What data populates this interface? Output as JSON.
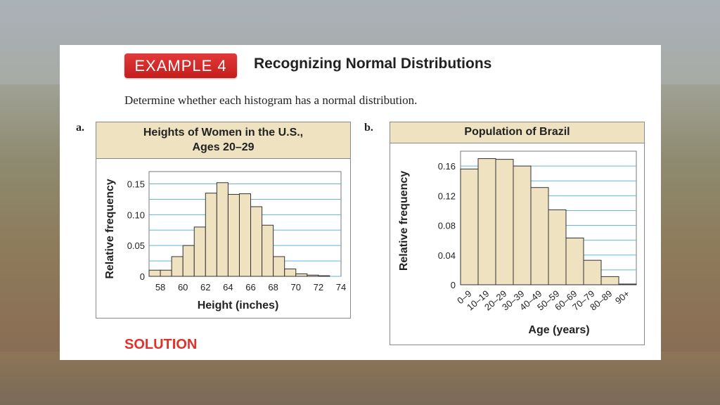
{
  "example": {
    "badge": "EXAMPLE 4",
    "title": "Recognizing Normal Distributions",
    "instruction": "Determine whether each histogram has a normal distribution.",
    "solution_label": "SOLUTION"
  },
  "colors": {
    "bar_fill": "#efe2c0",
    "grid": "#5fb7e0",
    "accent_red": "#e0322c",
    "panel_header": "#efe2c0"
  },
  "chart_data": [
    {
      "part_label": "a.",
      "type": "bar",
      "title_line1": "Heights of Women in the U.S.,",
      "title_line2": "Ages 20–29",
      "xlabel": "Height (inches)",
      "ylabel": "Relative frequency",
      "x_ticks": [
        "58",
        "60",
        "62",
        "64",
        "66",
        "68",
        "70",
        "72",
        "74"
      ],
      "y_ticks": [
        "0",
        "0.05",
        "0.10",
        "0.15"
      ],
      "bin_edges": [
        57,
        58,
        59,
        60,
        61,
        62,
        63,
        64,
        65,
        66,
        67,
        68,
        69,
        70,
        71,
        72,
        73,
        74
      ],
      "values": [
        0.01,
        0.01,
        0.032,
        0.05,
        0.08,
        0.135,
        0.152,
        0.133,
        0.134,
        0.113,
        0.083,
        0.032,
        0.012,
        0.004,
        0.002,
        0.001,
        0.0
      ],
      "ylim": [
        0,
        0.17
      ],
      "grid": true
    },
    {
      "part_label": "b.",
      "type": "bar",
      "title": "Population of Brazil",
      "xlabel": "Age (years)",
      "ylabel": "Relative frequency",
      "categories": [
        "0–9",
        "10–19",
        "20–29",
        "30–39",
        "40–49",
        "50–59",
        "60–69",
        "70–79",
        "80–89",
        "90+"
      ],
      "values": [
        0.156,
        0.17,
        0.169,
        0.16,
        0.131,
        0.101,
        0.063,
        0.033,
        0.011,
        0.001
      ],
      "y_ticks": [
        "0",
        "0.04",
        "0.08",
        "0.12",
        "0.16"
      ],
      "ylim": [
        0,
        0.18
      ],
      "grid": true
    }
  ]
}
